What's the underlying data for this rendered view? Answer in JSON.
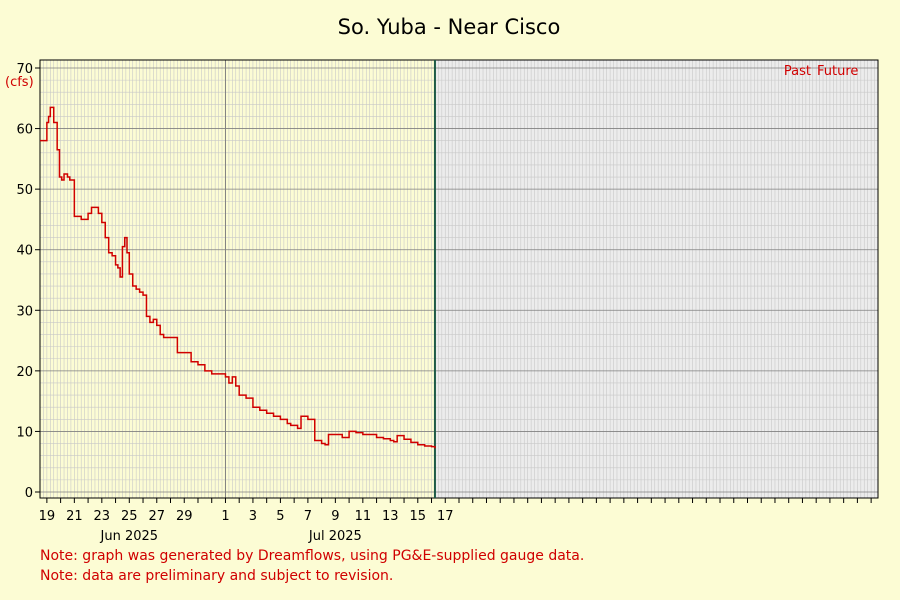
{
  "chart_data": {
    "type": "line",
    "title": "So. Yuba - Near Cisco",
    "ylabel": "(cfs)",
    "xlabel": "",
    "ylim": [
      0,
      70
    ],
    "y_ticks": [
      "0",
      "10",
      "20",
      "30",
      "40",
      "50",
      "60",
      "70"
    ],
    "x_range": [
      "2025-05-18T12:00",
      "2025-07-18T12:00"
    ],
    "x_ticks": [
      {
        "date": "2025-05-19",
        "label": "19"
      },
      {
        "date": "2025-05-21",
        "label": "21"
      },
      {
        "date": "2025-05-23",
        "label": "23"
      },
      {
        "date": "2025-05-25",
        "label": "25"
      },
      {
        "date": "2025-05-27",
        "label": "27"
      },
      {
        "date": "2025-05-29",
        "label": "29"
      },
      {
        "date": "2025-06-01",
        "label": "1"
      },
      {
        "date": "2025-06-03",
        "label": "3"
      },
      {
        "date": "2025-06-05",
        "label": "5"
      },
      {
        "date": "2025-06-07",
        "label": "7"
      },
      {
        "date": "2025-06-09",
        "label": "9"
      },
      {
        "date": "2025-06-11",
        "label": "11"
      },
      {
        "date": "2025-06-13",
        "label": "13"
      },
      {
        "date": "2025-06-15",
        "label": "15"
      },
      {
        "date": "2025-06-17",
        "label": "17"
      }
    ],
    "month_labels": [
      {
        "date": "2025-05-25",
        "label": "Jun 2025"
      },
      {
        "date": "2025-06-09",
        "label": "Jul 2025"
      }
    ],
    "grid": true,
    "now": "2025-06-16T06:00",
    "past_label": "Past",
    "future_label": "Future",
    "colors": {
      "line": "#d00000",
      "now_line": "#1e5a46",
      "future_bg": "#ececec",
      "grid_minor": "#c8c8c8",
      "grid_major": "#808080"
    },
    "series": [
      {
        "name": "",
        "x": [
          "2025-05-18T12:00",
          "2025-05-18T18:00",
          "2025-05-19T00:00",
          "2025-05-19T03:00",
          "2025-05-19T06:00",
          "2025-05-19T12:00",
          "2025-05-19T18:00",
          "2025-05-19T22:00",
          "2025-05-20T02:00",
          "2025-05-20T06:00",
          "2025-05-20T12:00",
          "2025-05-20T16:00",
          "2025-05-21T00:00",
          "2025-05-21T12:00",
          "2025-05-21T16:00",
          "2025-05-22T00:00",
          "2025-05-22T06:00",
          "2025-05-22T12:00",
          "2025-05-22T18:00",
          "2025-05-23T00:00",
          "2025-05-23T06:00",
          "2025-05-23T12:00",
          "2025-05-23T18:00",
          "2025-05-24T00:00",
          "2025-05-24T04:00",
          "2025-05-24T08:00",
          "2025-05-24T12:00",
          "2025-05-24T16:00",
          "2025-05-24T20:00",
          "2025-05-25T00:00",
          "2025-05-25T06:00",
          "2025-05-25T12:00",
          "2025-05-25T18:00",
          "2025-05-26T00:00",
          "2025-05-26T06:00",
          "2025-05-26T12:00",
          "2025-05-26T18:00",
          "2025-05-27T00:00",
          "2025-05-27T06:00",
          "2025-05-27T12:00",
          "2025-05-28T00:00",
          "2025-05-28T12:00",
          "2025-05-29T00:00",
          "2025-05-29T12:00",
          "2025-05-30T00:00",
          "2025-05-30T12:00",
          "2025-05-31T00:00",
          "2025-05-31T12:00",
          "2025-06-01T00:00",
          "2025-06-01T06:00",
          "2025-06-01T12:00",
          "2025-06-01T18:00",
          "2025-06-02T00:00",
          "2025-06-02T12:00",
          "2025-06-03T00:00",
          "2025-06-03T12:00",
          "2025-06-04T00:00",
          "2025-06-04T12:00",
          "2025-06-05T00:00",
          "2025-06-05T12:00",
          "2025-06-05T18:00",
          "2025-06-06T00:00",
          "2025-06-06T06:00",
          "2025-06-06T12:00",
          "2025-06-06T18:00",
          "2025-06-07T00:00",
          "2025-06-07T12:00",
          "2025-06-08T00:00",
          "2025-06-08T06:00",
          "2025-06-08T12:00",
          "2025-06-09T00:00",
          "2025-06-09T12:00",
          "2025-06-10T00:00",
          "2025-06-10T12:00",
          "2025-06-11T00:00",
          "2025-06-11T12:00",
          "2025-06-12T00:00",
          "2025-06-12T12:00",
          "2025-06-13T00:00",
          "2025-06-13T06:00",
          "2025-06-13T12:00",
          "2025-06-14T00:00",
          "2025-06-14T12:00",
          "2025-06-15T00:00",
          "2025-06-15T12:00",
          "2025-06-16T00:00",
          "2025-06-16T06:00"
        ],
        "y": [
          58,
          58,
          61,
          62,
          63.5,
          61,
          56.5,
          52,
          51.5,
          52.5,
          52,
          51.5,
          45.5,
          45,
          45,
          46,
          47,
          47,
          46,
          44.5,
          42,
          39.5,
          39,
          37.5,
          37,
          35.5,
          40.5,
          42,
          39.5,
          36,
          34,
          33.5,
          33,
          32.5,
          29,
          28,
          28.5,
          27.5,
          26,
          25.5,
          25.5,
          23,
          23,
          21.5,
          21,
          20,
          19.5,
          19.5,
          19,
          18,
          19,
          17.5,
          16,
          15.5,
          14,
          13.5,
          13,
          12.5,
          12,
          11.3,
          11,
          11,
          10.5,
          12.5,
          12.5,
          12,
          8.5,
          8,
          7.8,
          9.5,
          9.5,
          9,
          10,
          9.8,
          9.5,
          9.5,
          9,
          8.8,
          8.5,
          8.3,
          9.3,
          8.7,
          8.2,
          7.8,
          7.6,
          7.5,
          7.2
        ]
      }
    ]
  },
  "notes": [
    "Note: graph was generated by Dreamflows, using PG&E-supplied gauge data.",
    "Note: data are preliminary and subject to revision."
  ]
}
